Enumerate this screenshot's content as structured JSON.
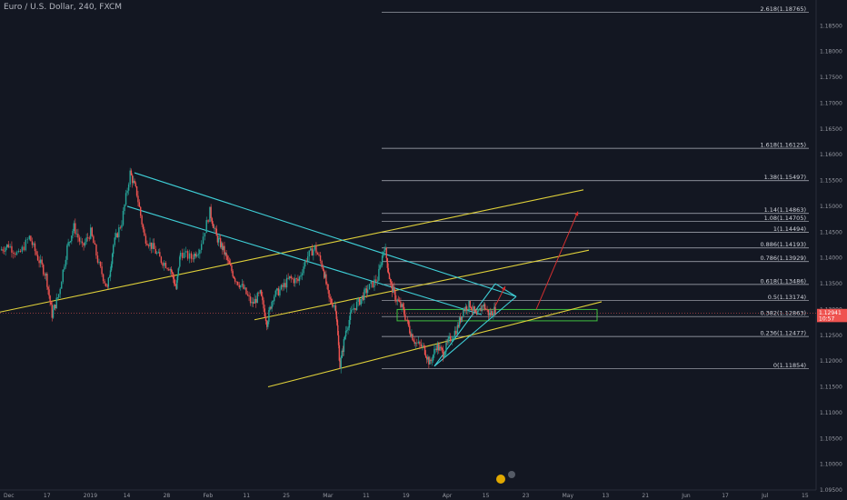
{
  "header": {
    "symbol_title": "Euro / U.S. Dollar, 240, FXCM"
  },
  "chart_data": {
    "type": "candlestick",
    "title": "Euro / U.S. Dollar, 240, FXCM",
    "ylim": [
      1.095,
      1.19
    ],
    "x_ticks": [
      "Dec",
      "17",
      "2019",
      "14",
      "28",
      "Feb",
      "11",
      "25",
      "Mar",
      "11",
      "19",
      "Apr",
      "15",
      "23",
      "May",
      "13",
      "21",
      "Jun",
      "17",
      "Jul",
      "15"
    ],
    "y_ticks": [
      "1.18500",
      "1.18000",
      "1.17500",
      "1.17000",
      "1.16500",
      "1.16000",
      "1.15500",
      "1.15000",
      "1.14500",
      "1.14000",
      "1.13500",
      "1.13000",
      "1.12500",
      "1.12000",
      "1.11500",
      "1.11000",
      "1.10500",
      "1.10000",
      "1.09500"
    ],
    "fib_levels": [
      {
        "label": "2.618(1.18765)",
        "price": 1.18765
      },
      {
        "label": "1.618(1.16125)",
        "price": 1.16125
      },
      {
        "label": "1.38(1.15497)",
        "price": 1.15497
      },
      {
        "label": "1.14(1.14863)",
        "price": 1.14863
      },
      {
        "label": "1.08(1.14705)",
        "price": 1.14705
      },
      {
        "label": "1(1.14494)",
        "price": 1.14494
      },
      {
        "label": "0.886(1.14193)",
        "price": 1.14193
      },
      {
        "label": "0.786(1.13929)",
        "price": 1.13929
      },
      {
        "label": "0.618(1.13486)",
        "price": 1.13486
      },
      {
        "label": "0.5(1.13174)",
        "price": 1.13174
      },
      {
        "label": "0.382(1.12863)",
        "price": 1.12863
      },
      {
        "label": "0.236(1.12477)",
        "price": 1.12477
      },
      {
        "label": "0(1.11854)",
        "price": 1.11854
      }
    ],
    "price_tags": [
      {
        "text": "EURUSD",
        "value": 1.12925,
        "color": "#ef5350"
      },
      {
        "text": "1.12941",
        "value": 1.12941,
        "color": "#ef5350"
      },
      {
        "text": "10:57",
        "value": 1.12825,
        "color": "#ef5350"
      }
    ],
    "colors": {
      "background": "#131722",
      "up_candle": "#26a69a",
      "down_candle": "#ef5350",
      "channel": "#e0d13a",
      "triangle": "#3fd0d8",
      "support_zone": "#3fbf3f",
      "projection_arrow": "#d32f2f",
      "fib_line": "#b2b5be"
    },
    "price_path": [
      [
        0,
        1.1415
      ],
      [
        0.01,
        1.1425
      ],
      [
        0.022,
        1.1405
      ],
      [
        0.035,
        1.144
      ],
      [
        0.045,
        1.14
      ],
      [
        0.055,
        1.1365
      ],
      [
        0.062,
        1.129
      ],
      [
        0.07,
        1.133
      ],
      [
        0.08,
        1.142
      ],
      [
        0.088,
        1.146
      ],
      [
        0.098,
        1.142
      ],
      [
        0.108,
        1.145
      ],
      [
        0.118,
        1.1385
      ],
      [
        0.128,
        1.134
      ],
      [
        0.135,
        1.1425
      ],
      [
        0.145,
        1.147
      ],
      [
        0.155,
        1.1565
      ],
      [
        0.163,
        1.1525
      ],
      [
        0.172,
        1.144
      ],
      [
        0.182,
        1.142
      ],
      [
        0.192,
        1.1395
      ],
      [
        0.203,
        1.138
      ],
      [
        0.21,
        1.134
      ],
      [
        0.215,
        1.141
      ],
      [
        0.228,
        1.14
      ],
      [
        0.238,
        1.142
      ],
      [
        0.25,
        1.149
      ],
      [
        0.258,
        1.144
      ],
      [
        0.265,
        1.142
      ],
      [
        0.272,
        1.139
      ],
      [
        0.28,
        1.136
      ],
      [
        0.29,
        1.134
      ],
      [
        0.3,
        1.131
      ],
      [
        0.31,
        1.133
      ],
      [
        0.318,
        1.1275
      ],
      [
        0.325,
        1.1325
      ],
      [
        0.335,
        1.134
      ],
      [
        0.345,
        1.136
      ],
      [
        0.355,
        1.1355
      ],
      [
        0.365,
        1.14
      ],
      [
        0.375,
        1.142
      ],
      [
        0.385,
        1.138
      ],
      [
        0.392,
        1.132
      ],
      [
        0.4,
        1.1305
      ],
      [
        0.405,
        1.119
      ],
      [
        0.412,
        1.126
      ],
      [
        0.42,
        1.13
      ],
      [
        0.43,
        1.132
      ],
      [
        0.438,
        1.134
      ],
      [
        0.45,
        1.136
      ],
      [
        0.458,
        1.1425
      ],
      [
        0.465,
        1.135
      ],
      [
        0.472,
        1.132
      ],
      [
        0.48,
        1.13
      ],
      [
        0.488,
        1.126
      ],
      [
        0.495,
        1.1235
      ],
      [
        0.505,
        1.1225
      ],
      [
        0.512,
        1.1195
      ],
      [
        0.52,
        1.123
      ],
      [
        0.528,
        1.1215
      ],
      [
        0.535,
        1.124
      ],
      [
        0.545,
        1.1265
      ],
      [
        0.552,
        1.13
      ],
      [
        0.56,
        1.131
      ],
      [
        0.568,
        1.1285
      ],
      [
        0.575,
        1.131
      ],
      [
        0.583,
        1.129
      ],
      [
        0.59,
        1.13
      ]
    ]
  }
}
